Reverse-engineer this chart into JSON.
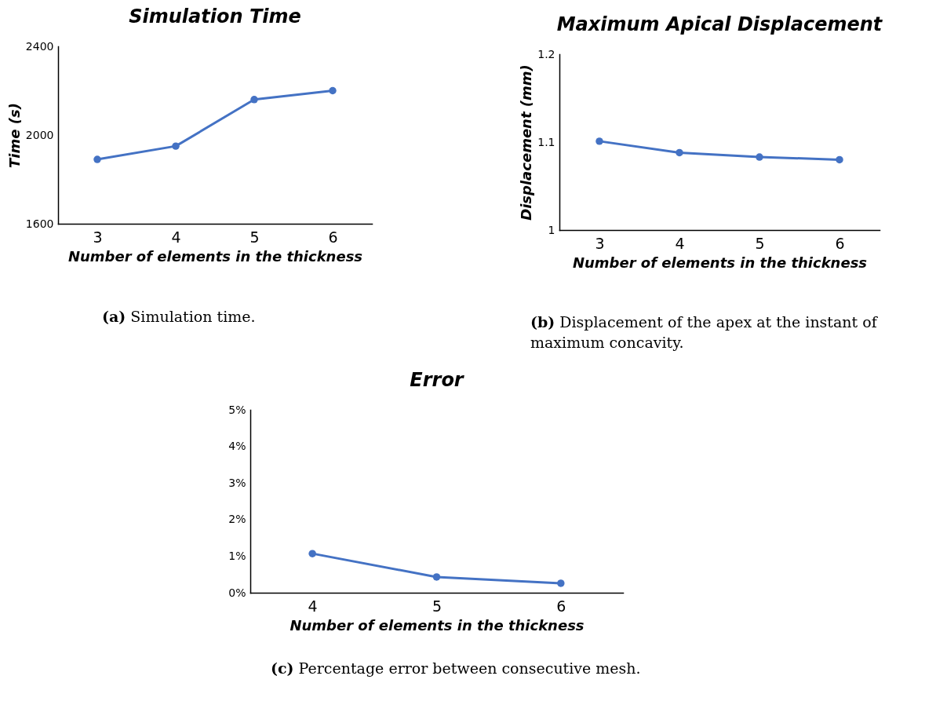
{
  "chart_data": [
    {
      "type": "line",
      "title": "Simulation Time",
      "xlabel": "Number of elements in the thickness",
      "ylabel": "Time (s)",
      "categories": [
        "3",
        "4",
        "5",
        "6"
      ],
      "series": [
        {
          "color": "#4472c4",
          "values": [
            1890,
            1950,
            2160,
            2200
          ]
        }
      ],
      "ylim": [
        1600,
        2400
      ],
      "yticks": [
        1600,
        2000,
        2400
      ],
      "marker": "circle",
      "grid": false,
      "annotations": [
        "(a) Simulation time."
      ]
    },
    {
      "type": "line",
      "title": "Maximum Apical Displacement",
      "xlabel": "Number of elements in the thickness",
      "ylabel": "Displacement (mm)",
      "categories": [
        "3",
        "4",
        "5",
        "6"
      ],
      "series": [
        {
          "color": "#4472c4",
          "values": [
            1.101,
            1.088,
            1.083,
            1.08
          ]
        }
      ],
      "ylim": [
        1,
        1.2
      ],
      "yticks": [
        1,
        1.1,
        1.2
      ],
      "marker": "circle",
      "grid": false,
      "annotations": [
        "(b) Displacement of the apex at the instant of maximum concavity."
      ]
    },
    {
      "type": "line",
      "title": "Error",
      "xlabel": "Number of elements in the thickness",
      "categories": [
        "4",
        "5",
        "6"
      ],
      "series": [
        {
          "color": "#4472c4",
          "values": [
            1.07,
            0.43,
            0.26
          ]
        }
      ],
      "ylim": [
        0,
        5
      ],
      "yticks": [
        {
          "value": 0,
          "label": "0%"
        },
        {
          "value": 1,
          "label": "1%"
        },
        {
          "value": 2,
          "label": "2%"
        },
        {
          "value": 3,
          "label": "3%"
        },
        {
          "value": 4,
          "label": "4%"
        },
        {
          "value": 5,
          "label": "5%"
        }
      ],
      "marker": "circle",
      "grid": false,
      "annotations": [
        "(c) Percentage error between consecutive mesh."
      ]
    }
  ]
}
